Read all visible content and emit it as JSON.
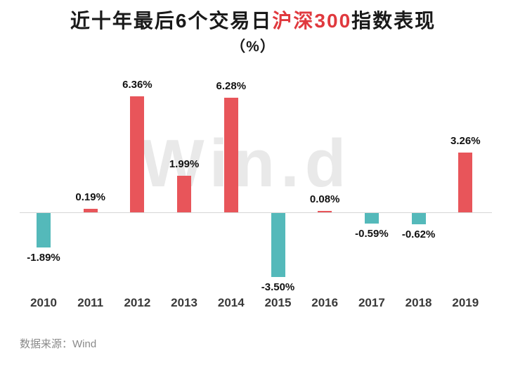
{
  "header": {
    "title_prefix": "近十年最后6个交易日",
    "title_highlight": "沪深300",
    "title_suffix": "指数表现",
    "subtitle": "（%）"
  },
  "watermark": {
    "text": "Win.d"
  },
  "footer": {
    "source": "数据来源：Wind"
  },
  "chart_data": {
    "type": "bar",
    "title": "近十年最后6个交易日沪深300指数表现（%）",
    "categories": [
      "2010",
      "2011",
      "2012",
      "2013",
      "2014",
      "2015",
      "2016",
      "2017",
      "2018",
      "2019"
    ],
    "values": [
      -1.89,
      0.19,
      6.36,
      1.99,
      6.28,
      -3.5,
      0.08,
      -0.59,
      -0.62,
      3.26
    ],
    "labels": [
      "-1.89%",
      "0.19%",
      "6.36%",
      "1.99%",
      "6.28%",
      "-3.50%",
      "0.08%",
      "-0.59%",
      "-0.62%",
      "3.26%"
    ],
    "xlabel": "",
    "ylabel": "%",
    "ylim": [
      -4,
      7
    ],
    "grid": false,
    "legend": "none",
    "positive_color": "#e8555a",
    "negative_color": "#54b9ba"
  }
}
